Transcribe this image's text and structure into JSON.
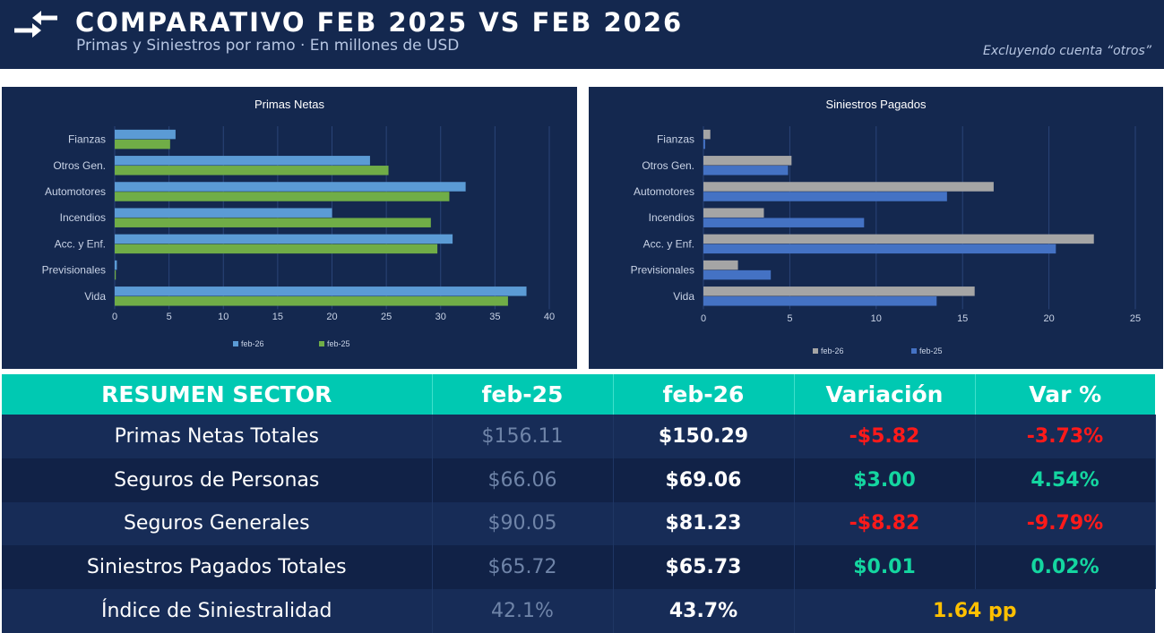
{
  "header": {
    "title": "COMPARATIVO FEB 2025 VS FEB 2026",
    "subtitle": "Primas y Siniestros por ramo · En millones de USD",
    "note": "Excluyendo cuenta “otros”",
    "icon": "swap-arrows-icon"
  },
  "colors": {
    "header_bg": "#14284f",
    "table_header_bg": "#00c9b2",
    "negative": "#ff1a1a",
    "positive": "#14d6a0",
    "highlight": "#ffc000"
  },
  "chart_data": [
    {
      "type": "bar",
      "orientation": "horizontal",
      "title": "Primas Netas",
      "categories": [
        "Fianzas",
        "Otros Gen.",
        "Automotores",
        "Incendios",
        "Acc. y Enf.",
        "Previsionales",
        "Vida"
      ],
      "series": [
        {
          "name": "feb-26",
          "color": "#5b9bd5",
          "values": [
            5.6,
            23.5,
            32.3,
            20.0,
            31.1,
            0.2,
            37.9
          ]
        },
        {
          "name": "feb-25",
          "color": "#70ad47",
          "values": [
            5.1,
            25.2,
            30.8,
            29.1,
            29.7,
            0.1,
            36.2
          ]
        }
      ],
      "xlim": [
        0,
        40
      ],
      "xticks": [
        0,
        5,
        10,
        15,
        20,
        25,
        30,
        35,
        40
      ],
      "grid": true,
      "legend": "bottom"
    },
    {
      "type": "bar",
      "orientation": "horizontal",
      "title": "Siniestros Pagados",
      "categories": [
        "Fianzas",
        "Otros Gen.",
        "Automotores",
        "Incendios",
        "Acc. y Enf.",
        "Previsionales",
        "Vida"
      ],
      "series": [
        {
          "name": "feb-26",
          "color": "#a5a5a5",
          "values": [
            0.4,
            5.1,
            16.8,
            3.5,
            22.6,
            2.0,
            15.7
          ]
        },
        {
          "name": "feb-25",
          "color": "#4472c4",
          "values": [
            0.1,
            4.9,
            14.1,
            9.3,
            20.4,
            3.9,
            13.5
          ]
        }
      ],
      "xlim": [
        0,
        25
      ],
      "xticks": [
        0,
        5,
        10,
        15,
        20,
        25
      ],
      "grid": true,
      "legend": "bottom"
    }
  ],
  "summary": {
    "headers": [
      "RESUMEN SECTOR",
      "feb-25",
      "feb-26",
      "Variación",
      "Var %"
    ],
    "rows": [
      {
        "label": "Primas Netas Totales",
        "prev": "$156.11",
        "cur": "$150.29",
        "var": "-$5.82",
        "pct": "-3.73%",
        "sign": "neg"
      },
      {
        "label": "Seguros de Personas",
        "prev": "$66.06",
        "cur": "$69.06",
        "var": "$3.00",
        "pct": "4.54%",
        "sign": "pos"
      },
      {
        "label": "Seguros Generales",
        "prev": "$90.05",
        "cur": "$81.23",
        "var": "-$8.82",
        "pct": "-9.79%",
        "sign": "neg"
      },
      {
        "label": "Siniestros Pagados Totales",
        "prev": "$65.72",
        "cur": "$65.73",
        "var": "$0.01",
        "pct": "0.02%",
        "sign": "pos"
      }
    ],
    "last_row": {
      "label": "Índice de Siniestralidad",
      "prev": "42.1%",
      "cur": "43.7%",
      "var": "1.64 pp"
    }
  }
}
